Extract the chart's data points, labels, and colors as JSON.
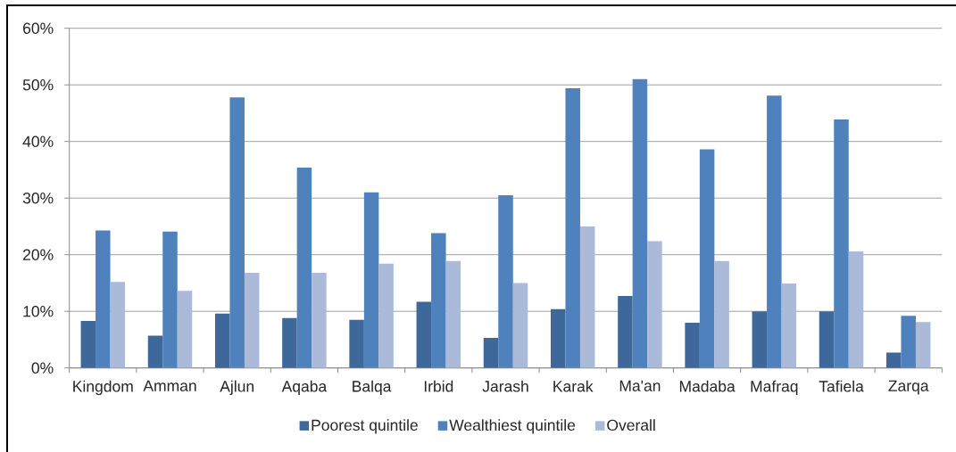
{
  "chart_data": {
    "type": "bar",
    "categories": [
      "Kingdom",
      "Amman",
      "Ajlun",
      "Aqaba",
      "Balqa",
      "Irbid",
      "Jarash",
      "Karak",
      "Ma'an",
      "Madaba",
      "Mafraq",
      "Tafiela",
      "Zarqa"
    ],
    "series": [
      {
        "name": "Poorest quintile",
        "color": "#3e6899",
        "values": [
          8.3,
          5.7,
          9.6,
          8.8,
          8.5,
          11.7,
          5.3,
          10.4,
          12.7,
          8.0,
          10.0,
          10.0,
          2.7
        ]
      },
      {
        "name": "Wealthiest quintile",
        "color": "#4f81bd",
        "values": [
          24.3,
          24.1,
          47.8,
          35.4,
          31.0,
          23.8,
          30.5,
          49.4,
          51.0,
          38.6,
          48.1,
          43.9,
          9.2
        ]
      },
      {
        "name": "Overall",
        "color": "#aabad8",
        "values": [
          15.2,
          13.6,
          16.8,
          16.8,
          18.4,
          18.9,
          15.0,
          25.0,
          22.4,
          18.9,
          14.9,
          20.6,
          8.1
        ]
      }
    ],
    "ylim": [
      0,
      60
    ],
    "yticks": [
      {
        "value": 0,
        "label": "0%"
      },
      {
        "value": 10,
        "label": "10%"
      },
      {
        "value": 20,
        "label": "20%"
      },
      {
        "value": 30,
        "label": "30%"
      },
      {
        "value": 40,
        "label": "40%"
      },
      {
        "value": 50,
        "label": "50%"
      },
      {
        "value": 60,
        "label": "60%"
      }
    ],
    "grid": "y",
    "legend": "bottom"
  }
}
